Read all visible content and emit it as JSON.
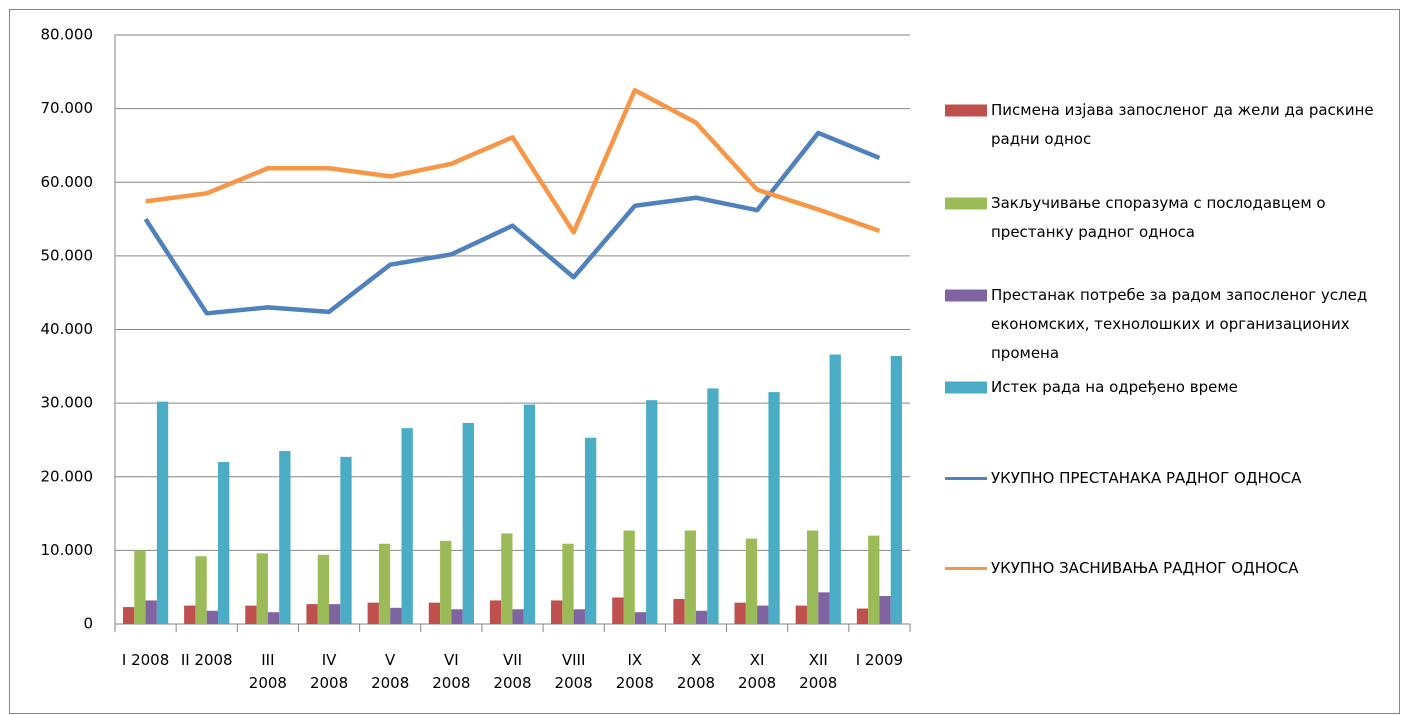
{
  "chart_data": {
    "type": "bar",
    "categories": [
      "I  2008",
      "II 2008",
      "III 2008",
      "IV 2008",
      "V 2008",
      "VI 2008",
      "VII 2008",
      "VIII 2008",
      "IX 2008",
      "X 2008",
      "XI 2008",
      "XII 2008",
      "I  2009"
    ],
    "series": [
      {
        "name": "Писмена изјава запосленог да жели да раскине радни однос",
        "type": "bar",
        "color": "#c0504d",
        "values": [
          2300,
          2500,
          2500,
          2700,
          2900,
          2900,
          3200,
          3200,
          3600,
          3400,
          2900,
          2500,
          2100
        ]
      },
      {
        "name": "Закључивање споразума с послодавцем о престанку радног односа",
        "type": "bar",
        "color": "#9bbb59",
        "values": [
          10000,
          9200,
          9600,
          9400,
          10900,
          11300,
          12300,
          10900,
          12700,
          12700,
          11600,
          12700,
          12000
        ]
      },
      {
        "name": "Престанак потребе за радом запосленог услед економских, технолошких и организационих промена",
        "type": "bar",
        "color": "#8064a2",
        "values": [
          3200,
          1800,
          1600,
          2700,
          2200,
          2000,
          2000,
          2000,
          1600,
          1800,
          2500,
          4300,
          3800
        ]
      },
      {
        "name": "Истек рада на одређено време",
        "type": "bar",
        "color": "#4bacc6",
        "values": [
          30200,
          22000,
          23500,
          22700,
          26600,
          27300,
          29800,
          25300,
          30400,
          32000,
          31500,
          36600,
          36400
        ]
      },
      {
        "name": "УКУПНО ПРЕСТАНАКА РАДНОГ ОДНОСА",
        "type": "line",
        "color": "#4f81bd",
        "values": [
          55000,
          42200,
          43000,
          42400,
          48800,
          50200,
          54100,
          47100,
          56800,
          57900,
          56200,
          66700,
          63300
        ]
      },
      {
        "name": "УКУПНО ЗАСНИВАЊА РАДНОГ ОДНОСА",
        "type": "line",
        "color": "#f79646",
        "values": [
          57400,
          58500,
          61900,
          61900,
          60800,
          62500,
          66100,
          53200,
          72500,
          68100,
          59000,
          56300,
          53400
        ]
      }
    ],
    "ylim": [
      0,
      80000
    ],
    "yticks": [
      0,
      {
        "value": 10000,
        "label": "10.000"
      },
      {
        "value": 20000,
        "label": "20.000"
      },
      {
        "value": 30000,
        "label": "30.000"
      },
      {
        "value": 40000,
        "label": "40.000"
      },
      {
        "value": 50000,
        "label": "50.000"
      },
      {
        "value": 60000,
        "label": "60.000"
      },
      {
        "value": 70000,
        "label": "70.000"
      },
      {
        "value": 80000,
        "label": "80.000"
      }
    ],
    "grid": true,
    "legend": "right"
  }
}
